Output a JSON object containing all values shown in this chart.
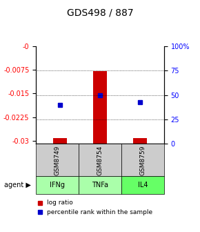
{
  "title": "GDS498 / 887",
  "samples": [
    "GSM8749",
    "GSM8754",
    "GSM8759"
  ],
  "agents": [
    "IFNg",
    "TNFa",
    "IL4"
  ],
  "log_ratios": [
    -0.0292,
    -0.0078,
    -0.0291
  ],
  "percentile_ranks": [
    40.0,
    49.5,
    43.0
  ],
  "ylim_left": [
    -0.031,
    0.0
  ],
  "yticks_left": [
    0,
    -0.0075,
    -0.015,
    -0.0225,
    -0.03
  ],
  "ytick_labels_left": [
    "-0",
    "-0.0075",
    "-0.015",
    "-0.0225",
    "-0.03"
  ],
  "ylim_right": [
    0,
    100
  ],
  "yticks_right": [
    0,
    25,
    50,
    75,
    100
  ],
  "ytick_labels_right": [
    "0",
    "25",
    "50",
    "75",
    "100%"
  ],
  "bar_color": "#cc0000",
  "dot_color": "#0000cc",
  "sample_bg_color": "#cccccc",
  "agent_colors": [
    "#aaffaa",
    "#aaffaa",
    "#66ff66"
  ],
  "legend_log_ratio": "log ratio",
  "legend_percentile": "percentile rank within the sample",
  "agent_label": "agent"
}
